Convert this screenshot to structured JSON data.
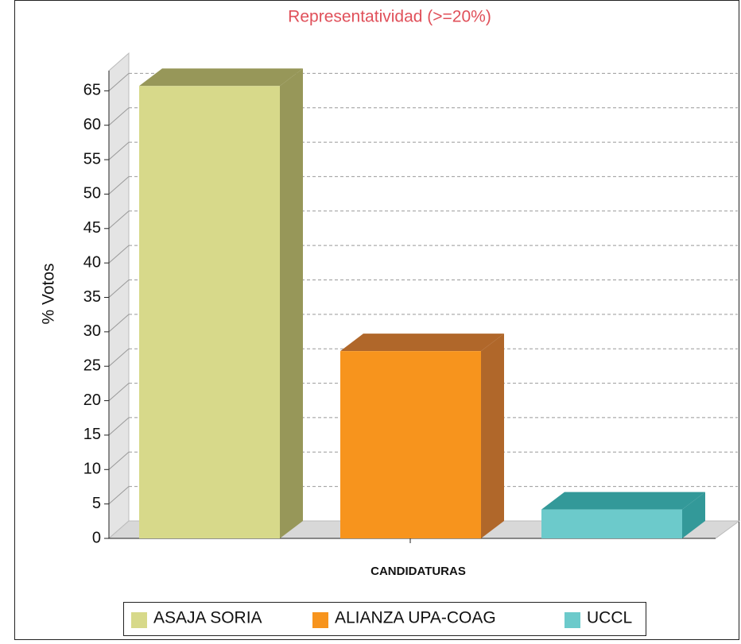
{
  "chart_data": {
    "type": "bar3d",
    "title": "Representatividad (>=20%)",
    "y_label": "% Votos",
    "x_label": "CANDIDATURAS",
    "categories": [
      "ASAJA SORIA",
      "ALIANZA UPA-COAG",
      "UCCL"
    ],
    "values": [
      65.7,
      27.2,
      4.2
    ],
    "colors": [
      "#d7d98a",
      "#f7941d",
      "#6ccacb"
    ],
    "side_colors": [
      "#979759",
      "#b0672a",
      "#339999"
    ],
    "ylim": [
      0,
      70
    ],
    "yticks": [
      0,
      5,
      10,
      15,
      20,
      25,
      30,
      35,
      40,
      45,
      50,
      55,
      60,
      65
    ],
    "grid": true
  }
}
